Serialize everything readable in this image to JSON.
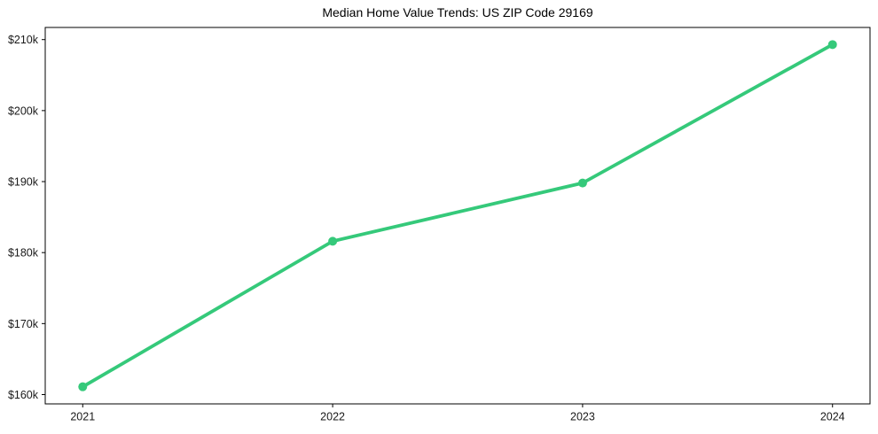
{
  "chart_data": {
    "type": "line",
    "title": "Median Home Value Trends: US ZIP Code 29169",
    "x": [
      2021,
      2022,
      2023,
      2024
    ],
    "values": [
      161100,
      181600,
      189800,
      209300
    ],
    "x_tick_labels": [
      "2021",
      "2022",
      "2023",
      "2024"
    ],
    "y_tick_values": [
      160000,
      170000,
      180000,
      190000,
      200000,
      210000
    ],
    "y_tick_labels": [
      "$160k",
      "$170k",
      "$180k",
      "$190k",
      "$200k",
      "$210k"
    ],
    "xlim": [
      2020.85,
      2024.15
    ],
    "ylim": [
      158690,
      211710
    ],
    "xlabel": "",
    "ylabel": "",
    "grid": false,
    "legend": "none",
    "marker": "circle",
    "line_color": "#35c97a",
    "axis_color": "#000000",
    "tick_label_color": "#1a1a1a",
    "background": "#ffffff"
  }
}
